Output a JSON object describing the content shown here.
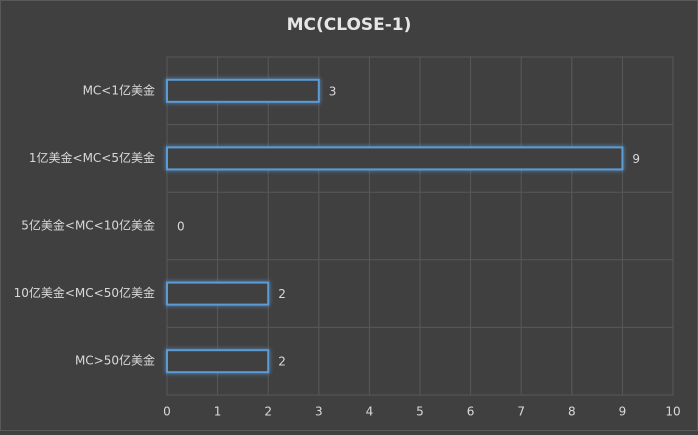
{
  "chart_data": {
    "type": "bar",
    "orientation": "horizontal",
    "title": "MC(CLOSE-1)",
    "categories": [
      "MC<1亿美金",
      "1亿美金<MC<5亿美金",
      "5亿美金<MC<10亿美金",
      "10亿美金<MC<50亿美金",
      "MC>50亿美金"
    ],
    "values": [
      3,
      9,
      0,
      2,
      2
    ],
    "color": "#5b9bd5",
    "xlim": [
      0,
      10
    ],
    "xticks": [
      0,
      1,
      2,
      3,
      4,
      5,
      6,
      7,
      8,
      9,
      10
    ],
    "grid": true
  }
}
